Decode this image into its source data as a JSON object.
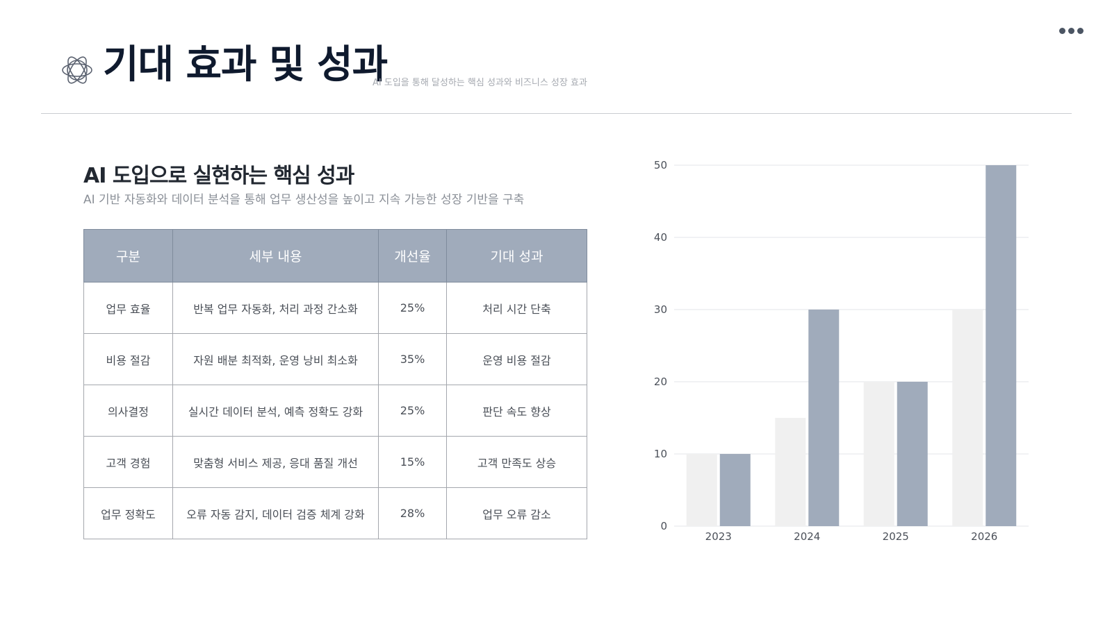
{
  "header": {
    "title": "기대 효과 및 성과",
    "subtitle": "AI 도입을 통해 달성하는 핵심 성과와 비즈니스 성장 효과",
    "logo_icon": "atom-star-icon",
    "menu_icon": "more-dots-icon"
  },
  "section": {
    "title": "AI 도입으로 실현하는 핵심 성과",
    "description": "AI 기반 자동화와 데이터 분석을 통해 업무 생산성을 높이고 지속 가능한 성장 기반을 구축"
  },
  "table": {
    "headers": [
      "구분",
      "세부 내용",
      "개선율",
      "기대 성과"
    ],
    "rows": [
      [
        "업무 효율",
        "반복 업무 자동화, 처리 과정 간소화",
        "25%",
        "처리 시간 단축"
      ],
      [
        "비용 절감",
        "자원 배분 최적화, 운영 낭비 최소화",
        "35%",
        "운영 비용 절감"
      ],
      [
        "의사결정",
        "실시간 데이터 분석, 예측 정확도 강화",
        "25%",
        "판단 속도 향상"
      ],
      [
        "고객 경험",
        "맞춤형 서비스 제공, 응대 품질 개선",
        "15%",
        "고객 만족도 상승"
      ],
      [
        "업무 정확도",
        "오류 자동 감지, 데이터 검증 체계 강화",
        "28%",
        "업무 오류 감소"
      ]
    ]
  },
  "colors": {
    "header_bg": "#a0abbb",
    "series_a": "#f0f0f0",
    "series_b": "#a0abbb",
    "title": "#0f1a2e"
  },
  "chart_data": {
    "type": "bar",
    "categories": [
      "2023",
      "2024",
      "2025",
      "2026"
    ],
    "series": [
      {
        "values": [
          10,
          15,
          20,
          30
        ],
        "color": "#f0f0f0"
      },
      {
        "values": [
          10,
          30,
          20,
          50
        ],
        "color": "#a0abbb"
      }
    ],
    "yticks": [
      0,
      10,
      20,
      30,
      40,
      50
    ],
    "ylim": [
      0,
      50
    ],
    "grid": true,
    "legend": "none"
  }
}
